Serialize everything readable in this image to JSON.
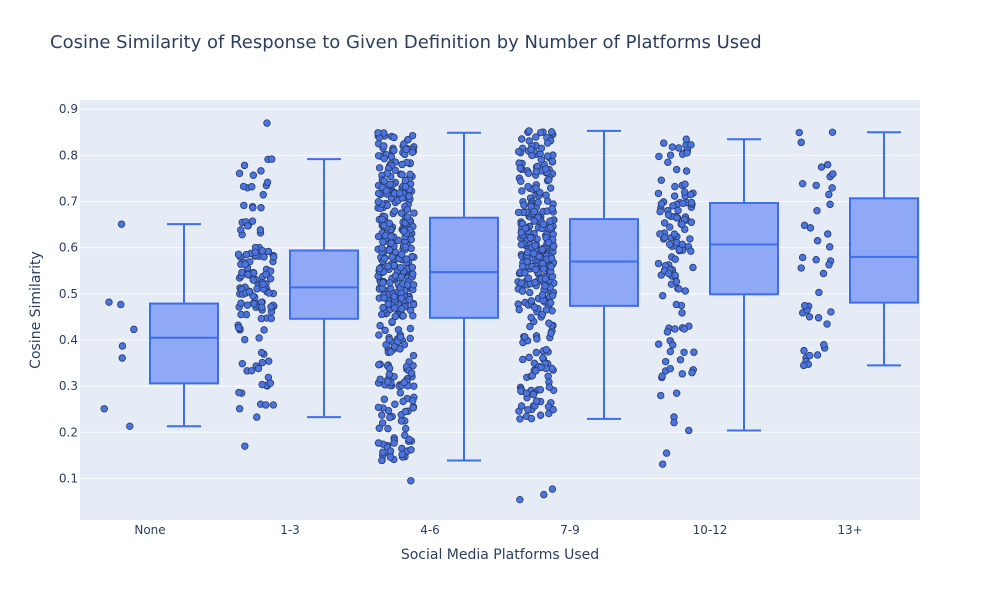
{
  "chart_data": {
    "type": "box",
    "title": "Cosine Similarity of Response to Given Definition by Number of Platforms Used",
    "xlabel": "Social Media Platforms Used",
    "ylabel": "Cosine Similarity",
    "categories": [
      "None",
      "1-3",
      "4-6",
      "7-9",
      "10-12",
      "13+"
    ],
    "yticks": [
      0.1,
      0.2,
      0.3,
      0.4,
      0.5,
      0.6,
      0.7,
      0.8,
      0.9
    ],
    "ylim": [
      0.01,
      0.92
    ],
    "grid": true,
    "boxpoints": "all",
    "colors": {
      "box_fill": "#8fa9f7",
      "box_line": "#3d6ef0",
      "marker": "#4a74e0",
      "marker_edge": "#2a3a6a",
      "plot_bg": "#e5ecf6",
      "grid": "#ffffff",
      "text": "#2a3f5f"
    },
    "boxes": [
      {
        "category": "None",
        "min": 0.213,
        "q1": 0.306,
        "median": 0.405,
        "q3": 0.479,
        "max": 0.651,
        "n": 8
      },
      {
        "category": "1-3",
        "min": 0.233,
        "q1": 0.446,
        "median": 0.514,
        "q3": 0.594,
        "max": 0.792,
        "n": 130
      },
      {
        "category": "4-6",
        "min": 0.139,
        "q1": 0.448,
        "median": 0.547,
        "q3": 0.665,
        "max": 0.849,
        "n": 420
      },
      {
        "category": "7-9",
        "min": 0.229,
        "q1": 0.474,
        "median": 0.57,
        "q3": 0.662,
        "max": 0.853,
        "n": 330
      },
      {
        "category": "10-12",
        "min": 0.204,
        "q1": 0.499,
        "median": 0.607,
        "q3": 0.697,
        "max": 0.835,
        "n": 120
      },
      {
        "category": "13+",
        "min": 0.345,
        "q1": 0.481,
        "median": 0.58,
        "q3": 0.707,
        "max": 0.85,
        "n": 40
      }
    ],
    "outliers": [
      {
        "category": "1-3",
        "values": [
          0.87,
          0.17
        ]
      },
      {
        "category": "4-6",
        "values": [
          0.095
        ]
      },
      {
        "category": "7-9",
        "values": [
          0.077,
          0.065,
          0.054
        ]
      },
      {
        "category": "10-12",
        "values": [
          0.155,
          0.131
        ]
      }
    ],
    "none_points": [
      0.651,
      0.482,
      0.477,
      0.423,
      0.387,
      0.361,
      0.251,
      0.213
    ]
  }
}
